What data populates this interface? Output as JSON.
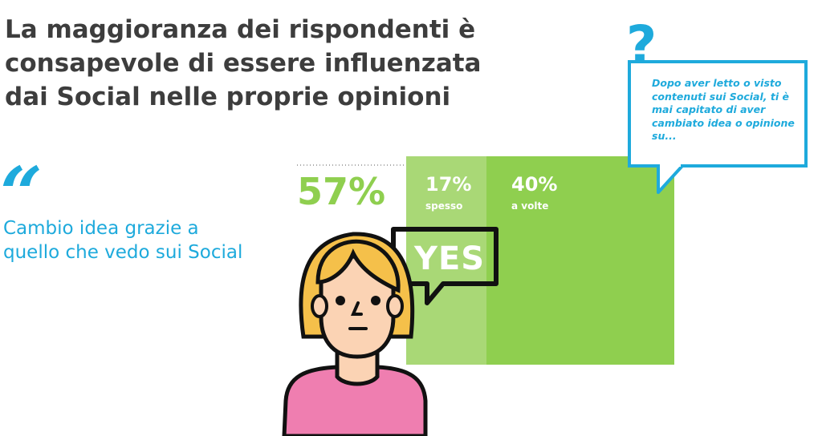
{
  "title": "La maggioranza dei rispondenti è consapevole di essere influenzata dai Social nelle proprie opinioni",
  "quote": {
    "mark": "“",
    "text": "Cambio idea grazie a quello che vedo sui Social"
  },
  "question": {
    "mark": "?",
    "text": "Dopo aver letto o visto contenuti sui Social, ti è mai capitato di aver cambiato idea o opinione su..."
  },
  "speech_bubble": "YES",
  "colors": {
    "accent_blue": "#1eaadc",
    "light_green": "#a9d876",
    "green": "#8fcf4f",
    "title_gray": "#3d3d3d"
  },
  "chart_data": {
    "type": "bar",
    "total_label": "57%",
    "total_value": 57,
    "categories": [
      "spesso",
      "a volte"
    ],
    "values": [
      17,
      40
    ],
    "value_labels": [
      "17%",
      "40%"
    ]
  }
}
